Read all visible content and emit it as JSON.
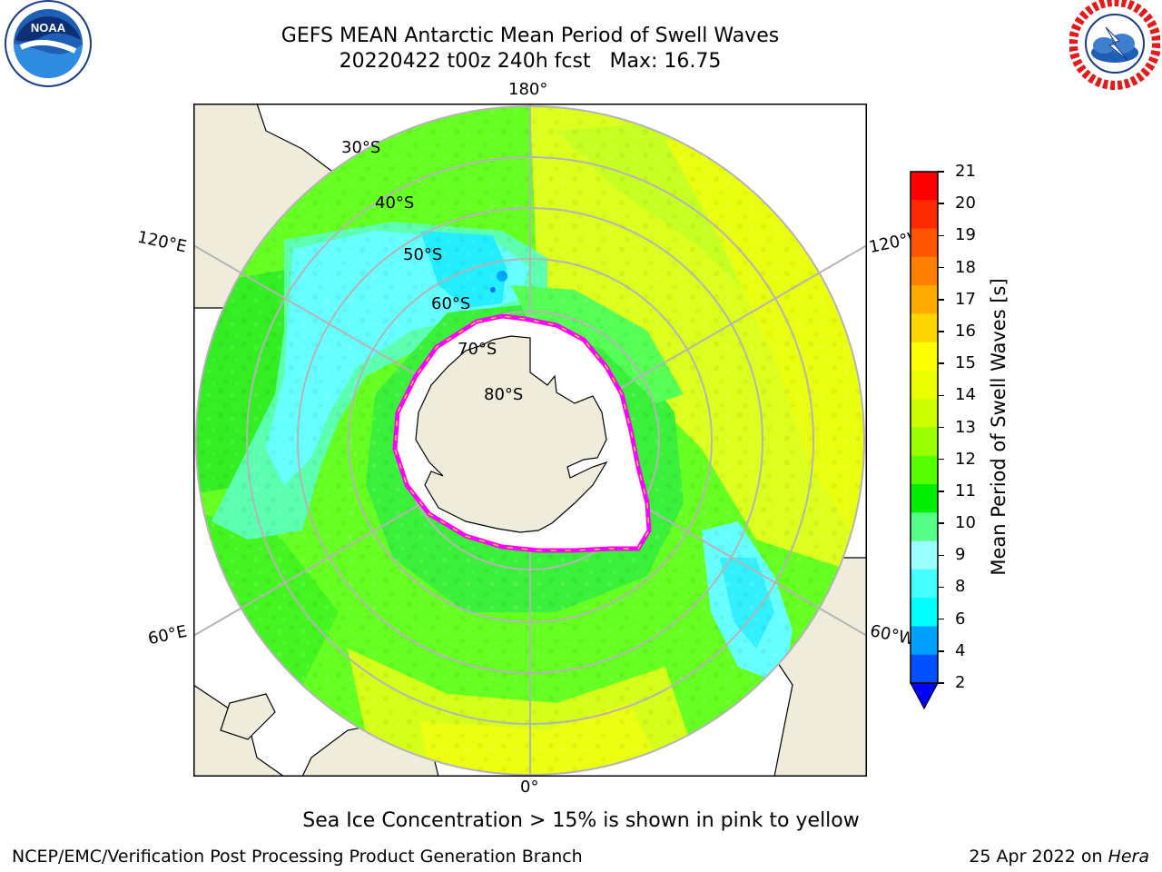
{
  "title": {
    "line1": "GEFS MEAN Antarctic Mean Period of Swell Waves",
    "line2": "20220422 t00z 240h fcst   Max: 16.75"
  },
  "logos": {
    "left": {
      "text": "NOAA",
      "icon": "noaa-logo"
    },
    "right": {
      "icon": "nws-logo"
    }
  },
  "map": {
    "projection": "south-polar-stereographic",
    "lon_labels": {
      "top": "180°",
      "bottom": "0°",
      "left_upper": "120°E",
      "left_lower": "60°E",
      "right_upper": "120°W",
      "right_lower": "60°W"
    },
    "lat_labels": [
      "30°S",
      "40°S",
      "50°S",
      "60°S",
      "70°S",
      "80°S"
    ],
    "colors": {
      "land": "#efecdc",
      "ice": "#ffffff",
      "grid": "#b4b4b4",
      "ice_edge": "#ff00ff",
      "ice_edge_inner": "#ffc832"
    }
  },
  "colorbar": {
    "title": "Mean Period of Swell Waves [s]",
    "ticks": [
      "21",
      "20",
      "19",
      "18",
      "17",
      "16",
      "15",
      "14",
      "13",
      "12",
      "11",
      "10",
      "9",
      "8",
      "6",
      "4",
      "2"
    ],
    "colors": [
      "#ff0000",
      "#ff2a00",
      "#ff5500",
      "#ff8000",
      "#ffaa00",
      "#ffd500",
      "#ffff00",
      "#eaff00",
      "#ccff00",
      "#99ff00",
      "#55ff00",
      "#00ee00",
      "#55ff88",
      "#99ffff",
      "#44ffff",
      "#00ffff",
      "#00a0ff",
      "#0050ff"
    ],
    "extend_color": "#0000ff"
  },
  "caption": "Sea Ice Concentration > 15% is shown in pink to yellow",
  "footer": {
    "credit": "NCEP/EMC/Verification Post Processing Product Generation Branch",
    "date_prefix": "25 Apr 2022 on ",
    "date_machine": "Hera"
  }
}
